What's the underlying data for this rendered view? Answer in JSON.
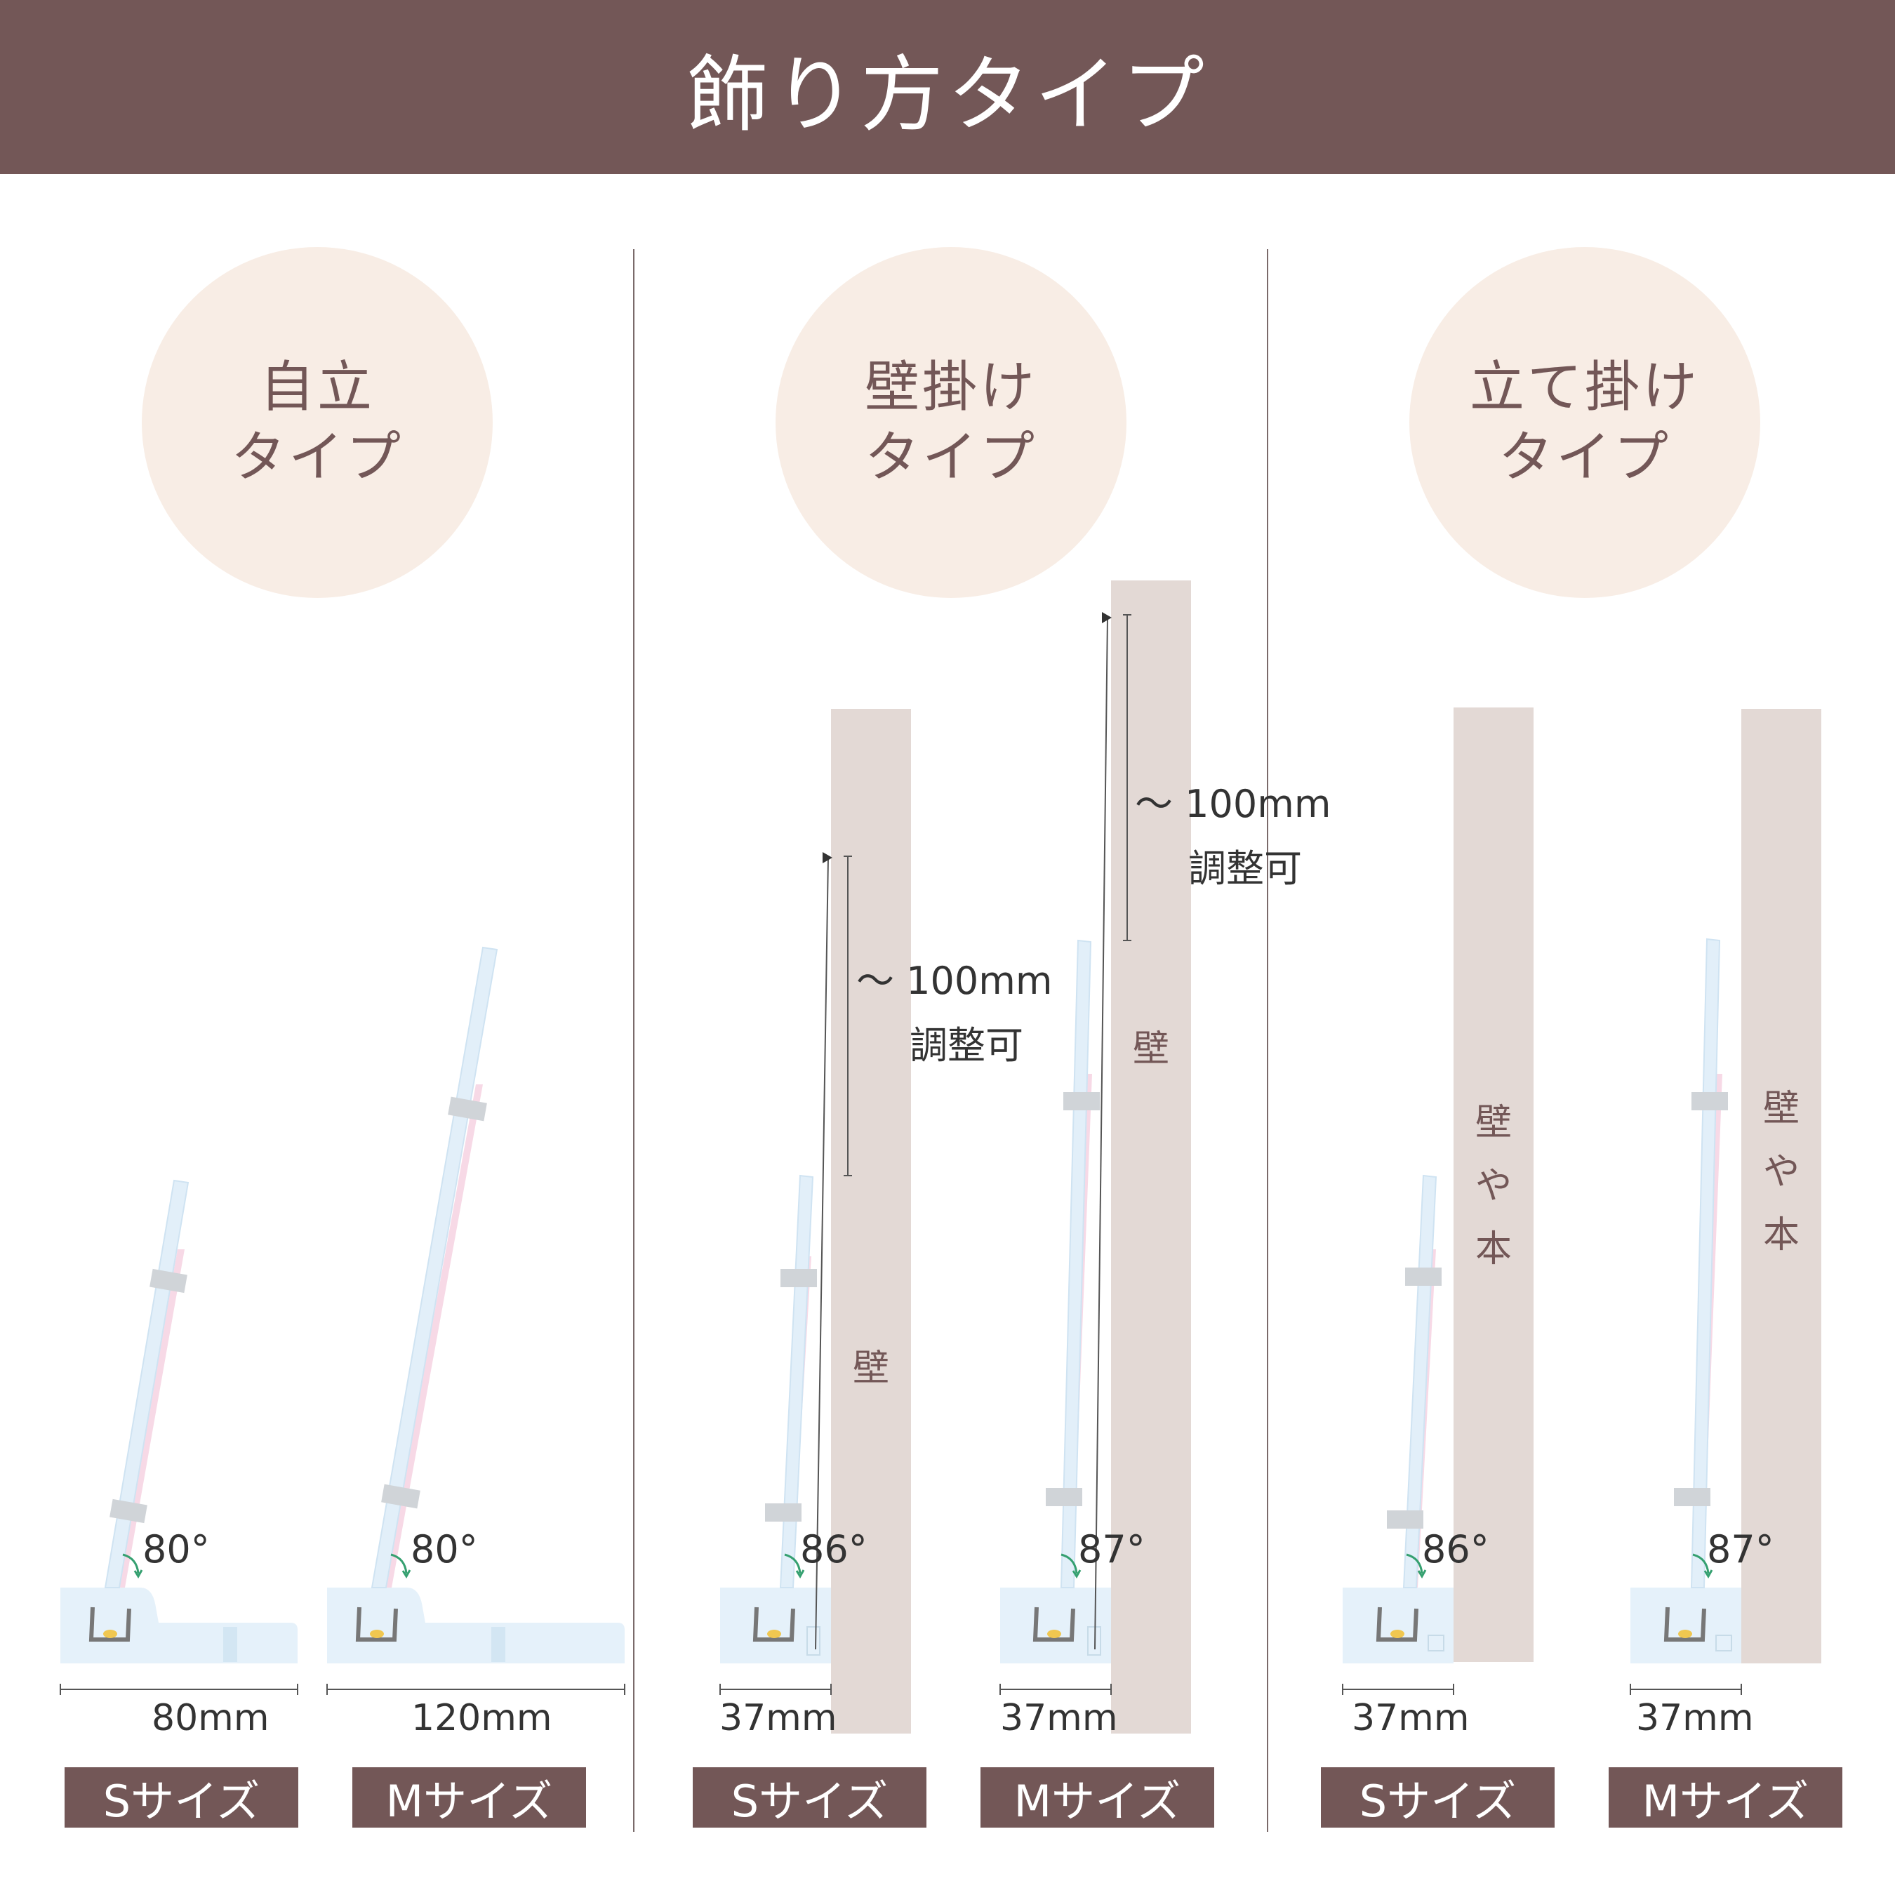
{
  "header": {
    "title": "飾り方タイプ"
  },
  "sections": [
    {
      "circle_line1": "自立",
      "circle_line2": "タイプ"
    },
    {
      "circle_line1": "壁掛け",
      "circle_line2": "タイプ"
    },
    {
      "circle_line1": "立て掛け",
      "circle_line2": "タイプ"
    }
  ],
  "standalone": {
    "s": {
      "angle": "80°",
      "width": "80mm",
      "size_label": "Sサイズ"
    },
    "m": {
      "angle": "80°",
      "width": "120mm",
      "size_label": "Mサイズ"
    }
  },
  "wall_hang": {
    "wall_label": "壁",
    "adjust_range": "～ 100mm",
    "adjust_note": "調整可",
    "s": {
      "angle": "86°",
      "width": "37mm",
      "size_label": "Sサイズ"
    },
    "m": {
      "angle": "87°",
      "width": "37mm",
      "size_label": "Mサイズ"
    }
  },
  "lean": {
    "wall_label_chars": [
      "壁",
      "や",
      "本"
    ],
    "s": {
      "angle": "86°",
      "width": "37mm",
      "size_label": "Sサイズ"
    },
    "m": {
      "angle": "87°",
      "width": "37mm",
      "size_label": "Mサイズ"
    }
  },
  "colors": {
    "brown": "#735757",
    "circle": "#f8ede5",
    "wall": "#e3d9d5",
    "stand": "#e5f1fa",
    "pink": "#f7d9e6"
  }
}
